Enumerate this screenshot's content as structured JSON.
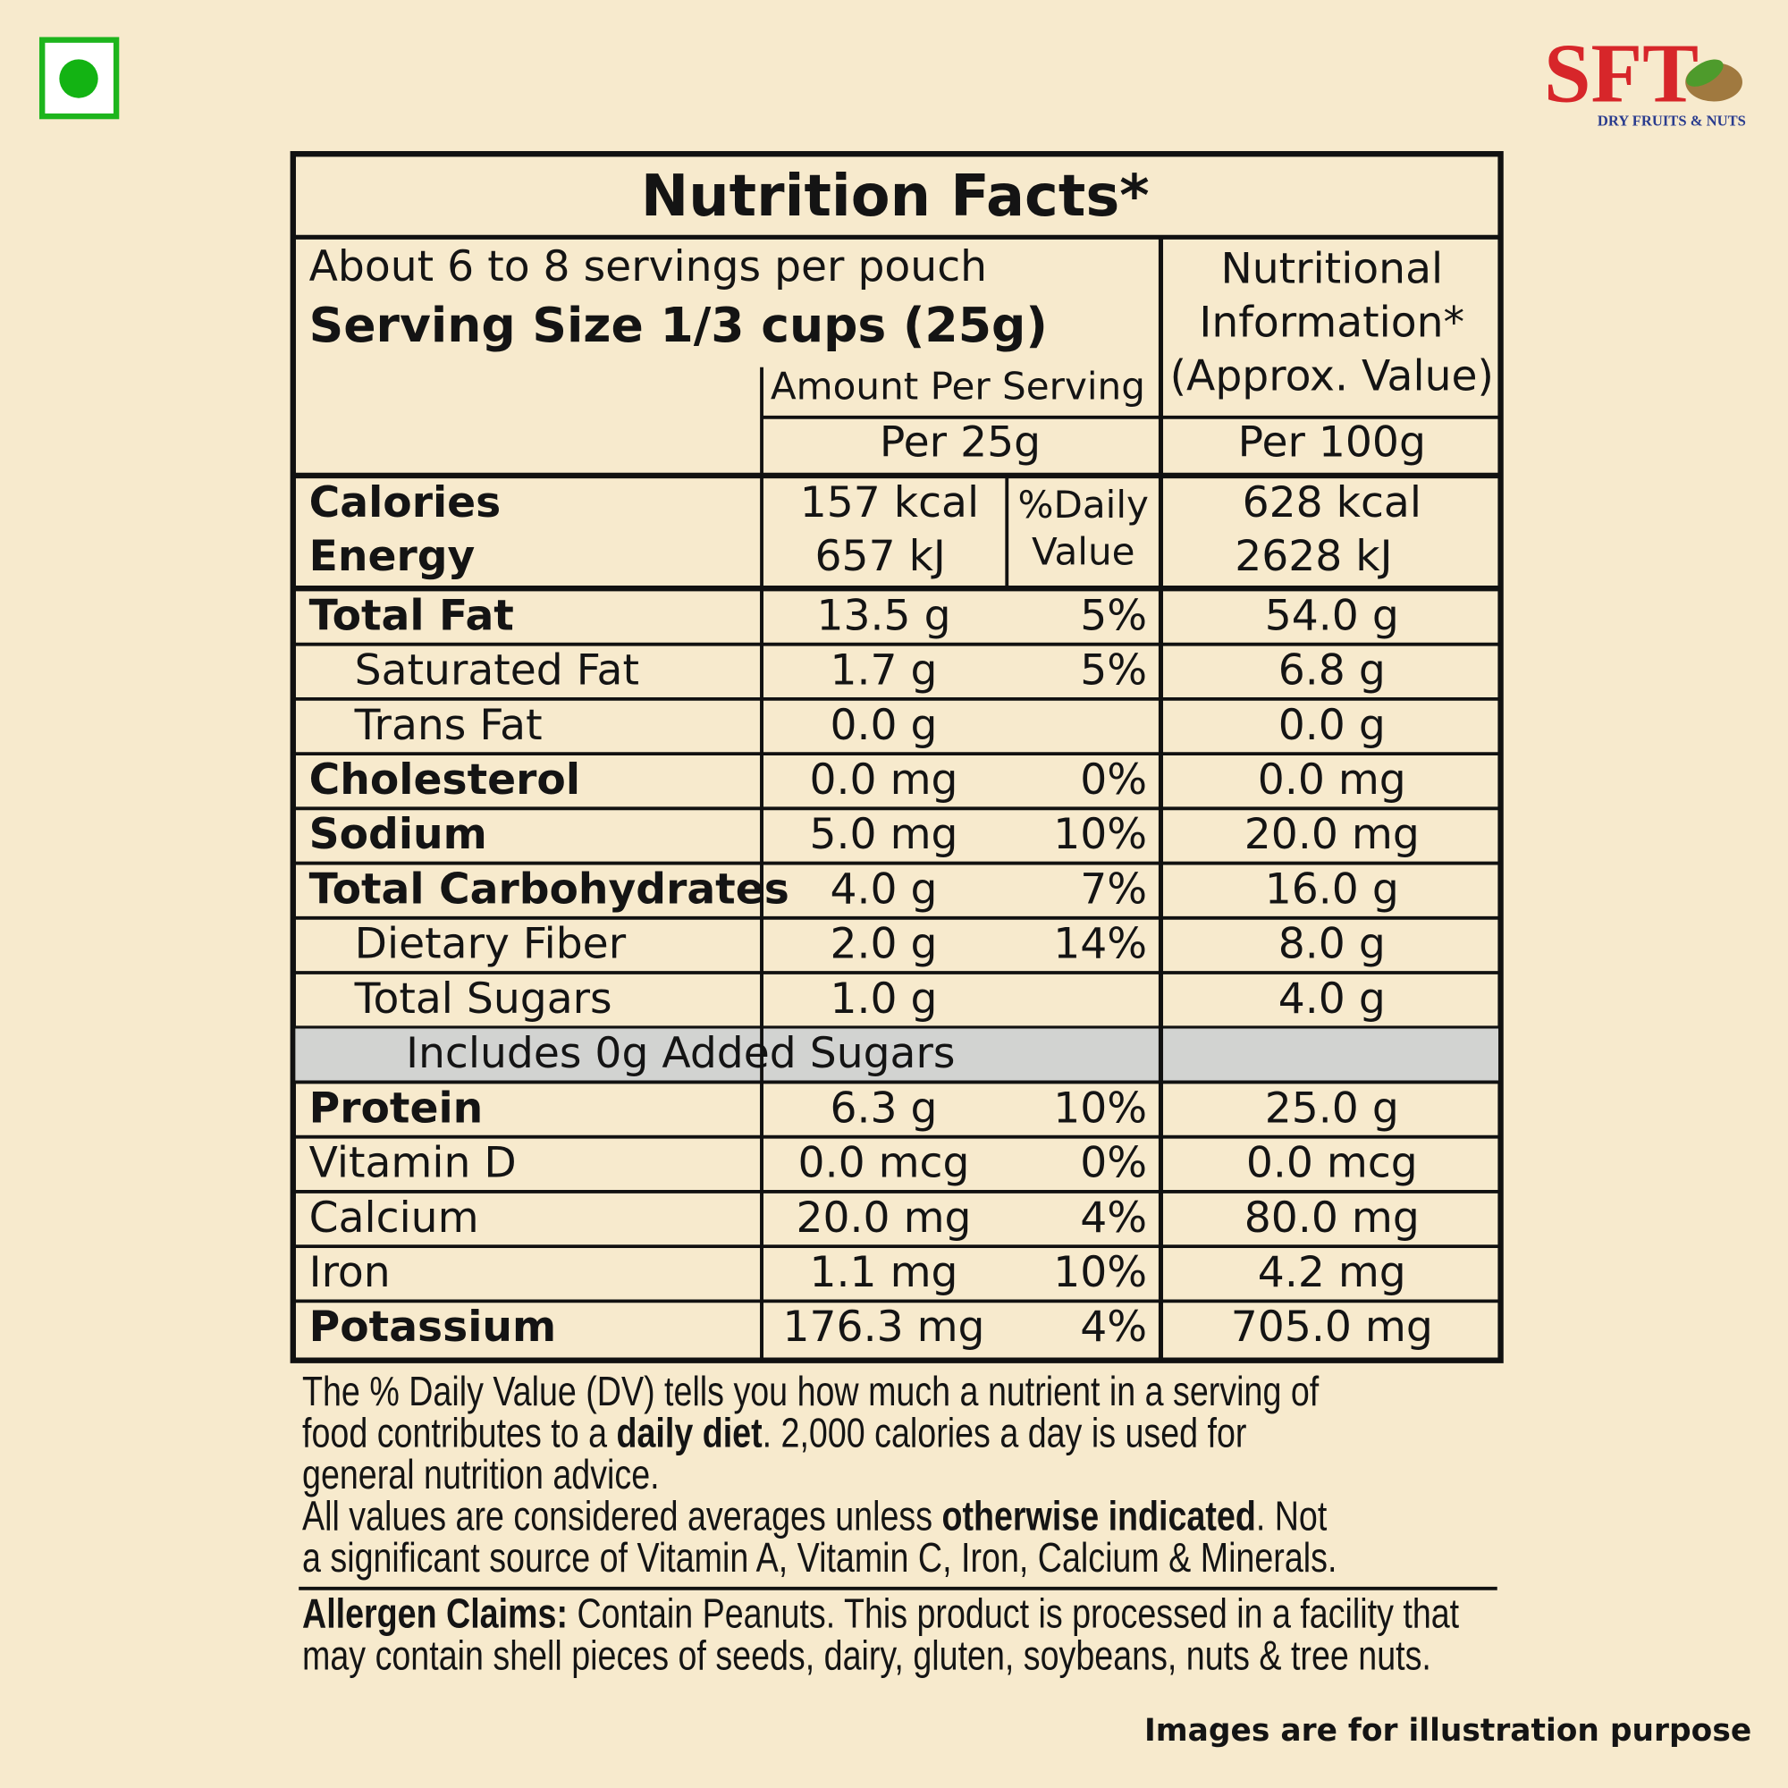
{
  "brand": {
    "name": "SFT",
    "tagline": "DRY FRUITS & NUTS"
  },
  "title": "Nutrition Facts*",
  "servings": "About 6 to 8 servings per pouch",
  "serving_size": "Serving Size 1/3 cups (25g)",
  "headers": {
    "amount": "Amount Per Serving",
    "per_serving": "Per 25g",
    "nutritional_info": [
      "Nutritional",
      "Information*",
      "(Approx. Value)"
    ],
    "per_100g": "Per 100g"
  },
  "energy": {
    "labels": [
      "Calories",
      "Energy"
    ],
    "per_serving": [
      "157 kcal",
      "657 kJ"
    ],
    "dv_header": [
      "%Daily",
      "Value"
    ],
    "per_100g": [
      "628 kcal",
      "2628 kJ"
    ]
  },
  "rows": [
    {
      "nutrient": "Total Fat",
      "per_serving": "13.5 g",
      "dv": "5%",
      "per_100g": "54.0 g",
      "bold": true
    },
    {
      "nutrient": "Saturated Fat",
      "per_serving": "1.7 g",
      "dv": "5%",
      "per_100g": "6.8 g",
      "indent": true
    },
    {
      "nutrient": "Trans Fat",
      "per_serving": "0.0 g",
      "per_100g": "0.0 g",
      "indent": true
    },
    {
      "nutrient": "Cholesterol",
      "per_serving": "0.0 mg",
      "dv": "0%",
      "per_100g": "0.0 mg",
      "bold": true
    },
    {
      "nutrient": "Sodium",
      "per_serving": "5.0 mg",
      "dv": "10%",
      "per_100g": "20.0 mg",
      "bold": true
    },
    {
      "nutrient": "Total Carbohydrates",
      "per_serving": "4.0 g",
      "dv": "7%",
      "per_100g": "16.0 g",
      "bold": true
    },
    {
      "nutrient": "Dietary Fiber",
      "per_serving": "2.0 g",
      "dv": "14%",
      "per_100g": "8.0 g",
      "indent": true
    },
    {
      "nutrient": "Total Sugars",
      "per_serving": "1.0 g",
      "per_100g": "4.0 g",
      "indent": true
    },
    {
      "nutrient": "Includes 0g Added Sugars",
      "highlight": true
    },
    {
      "nutrient": "Protein",
      "per_serving": "6.3 g",
      "dv": "10%",
      "per_100g": "25.0 g",
      "bold": true
    },
    {
      "nutrient": "Vitamin D",
      "per_serving": "0.0 mcg",
      "dv": "0%",
      "per_100g": "0.0 mcg"
    },
    {
      "nutrient": "Calcium",
      "per_serving": "20.0 mg",
      "dv": "4%",
      "per_100g": "80.0 mg"
    },
    {
      "nutrient": "Iron",
      "per_serving": "1.1 mg",
      "dv": "10%",
      "per_100g": "4.2 mg"
    },
    {
      "nutrient": "Potassium",
      "per_serving": "176.3 mg",
      "dv": "4%",
      "per_100g": "705.0 mg",
      "bold": true
    }
  ],
  "footnote": [
    [
      {
        "text": "The % Daily Value (DV) tells you how much a nutrient in a serving of"
      }
    ],
    [
      {
        "text": "food contributes to a "
      },
      {
        "text": "daily diet",
        "bold": true
      },
      {
        "text": ". 2,000 calories a day is used for"
      }
    ],
    [
      {
        "text": "general nutrition advice."
      }
    ],
    [
      {
        "text": "All values are considered averages unless "
      },
      {
        "text": "otherwise indicated",
        "bold": true
      },
      {
        "text": ". Not"
      }
    ],
    [
      {
        "text": "a significant source of Vitamin A, Vitamin C, Iron, Calcium & Minerals."
      }
    ]
  ],
  "allergen": [
    [
      {
        "text": "Allergen Claims:",
        "bold": true
      },
      {
        "text": " Contain Peanuts. This product is processed in a facility that"
      }
    ],
    [
      {
        "text": "may contain shell pieces of seeds, dairy, gluten, soybeans, nuts & tree nuts."
      }
    ]
  ],
  "disclaimer": "Images are for illustration purpose"
}
